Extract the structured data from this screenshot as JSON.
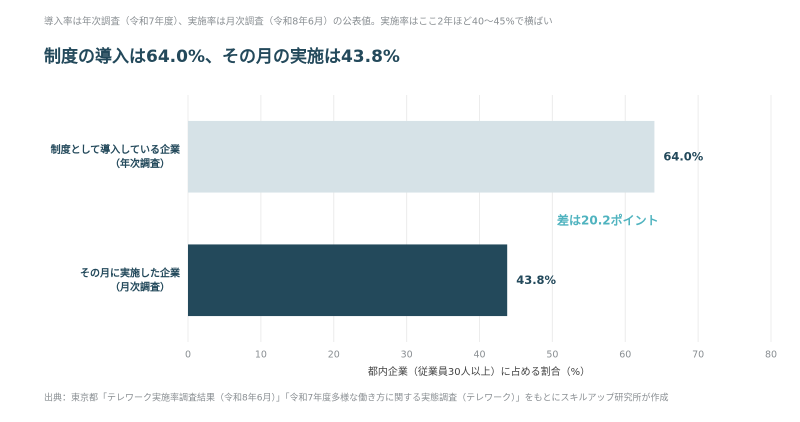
{
  "chart_data": {
    "type": "bar",
    "orientation": "horizontal",
    "subtitle": "導入率は年次調査（令和7年度）、実施率は月次調査（令和8年6月）の公表値。実施率はここ2年ほど40〜45%で横ばい",
    "title": "制度の導入は64.0%、その月の実施は43.8%",
    "categories": [
      [
        "制度として導入している企業",
        "（年次調査）"
      ],
      [
        "その月に実施した企業",
        "（月次調査）"
      ]
    ],
    "values": [
      64.0,
      43.8
    ],
    "value_labels": [
      "64.0%",
      "43.8%"
    ],
    "colors": [
      "#d6e2e7",
      "#23495b"
    ],
    "annotation": "差は20.2ポイント",
    "annotation_color": "#4fb3bf",
    "xlabel": "都内企業（従業員30人以上）に占める割合（%）",
    "xlim": [
      0,
      80
    ],
    "xticks": [
      0,
      10,
      20,
      30,
      40,
      50,
      60,
      70,
      80
    ],
    "grid": true,
    "source": "出典：東京都「テレワーク実施率調査結果（令和8年6月）」「令和7年度多様な働き方に関する実態調査（テレワーク）」をもとにスキルアップ研究所が作成"
  }
}
